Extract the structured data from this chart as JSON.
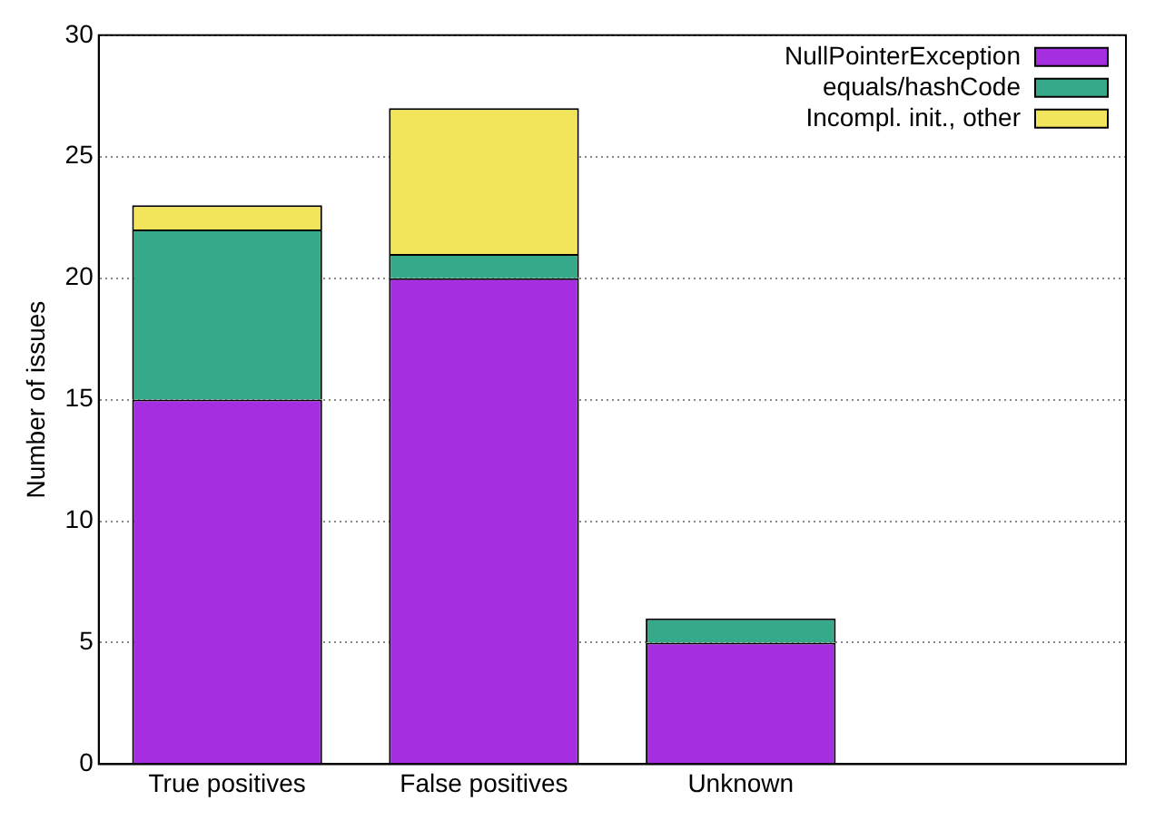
{
  "chart_data": {
    "type": "bar",
    "ylabel": "Number of issues",
    "categories": [
      "True positives",
      "False positives",
      "Unknown",
      null
    ],
    "series": [
      {
        "name": "NullPointerException",
        "color": "#a42ee0",
        "values": [
          15,
          20,
          5,
          null
        ]
      },
      {
        "name": "equals/hashCode",
        "color": "#35a98a",
        "values": [
          7,
          1,
          1,
          null
        ]
      },
      {
        "name": "Incompl. init., other",
        "color": "#f2e55c",
        "values": [
          1,
          6,
          0,
          null
        ]
      }
    ],
    "stacked": true,
    "ylim": [
      0,
      30
    ],
    "yticks": [
      0,
      5,
      10,
      15,
      20,
      25,
      30
    ],
    "grid": "y",
    "legend": "top right"
  }
}
